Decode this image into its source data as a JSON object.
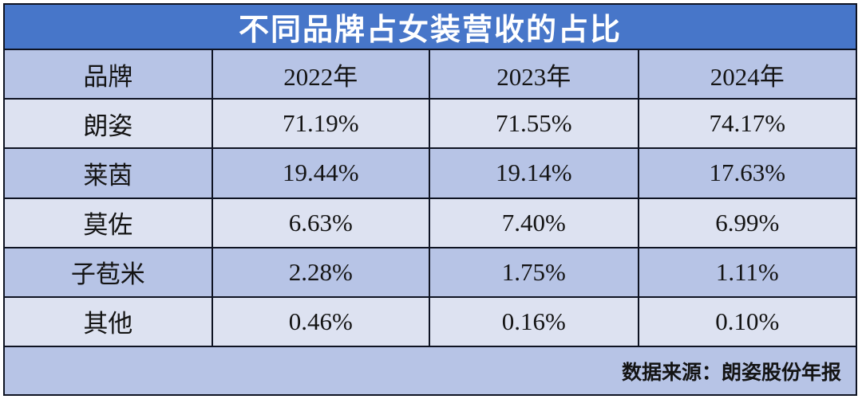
{
  "chart_data": {
    "type": "table",
    "title": "不同品牌占女装营收的占比",
    "columns": [
      "品牌",
      "2022年",
      "2023年",
      "2024年"
    ],
    "rows": [
      {
        "brand": "朗姿",
        "values": [
          "71.19%",
          "71.55%",
          "74.17%"
        ]
      },
      {
        "brand": "莱茵",
        "values": [
          "19.44%",
          "19.14%",
          "17.63%"
        ]
      },
      {
        "brand": "莫佐",
        "values": [
          "6.63%",
          "7.40%",
          "6.99%"
        ]
      },
      {
        "brand": "子苞米",
        "values": [
          "2.28%",
          "1.75%",
          "1.11%"
        ]
      },
      {
        "brand": "其他",
        "values": [
          "0.46%",
          "0.16%",
          "0.10%"
        ]
      }
    ],
    "source_note": "数据来源：朗姿股份年报",
    "layout": {
      "legend": "none",
      "grid": "full-borders",
      "row_striping": "alternating"
    }
  },
  "colors": {
    "title_background": "#4776c9",
    "title_text": "#ffffff",
    "row_medium": "#b7c4e6",
    "row_light": "#dde2f1",
    "border": "#0e1322",
    "cell_text": "#141414",
    "page_background": "#ffffff"
  }
}
